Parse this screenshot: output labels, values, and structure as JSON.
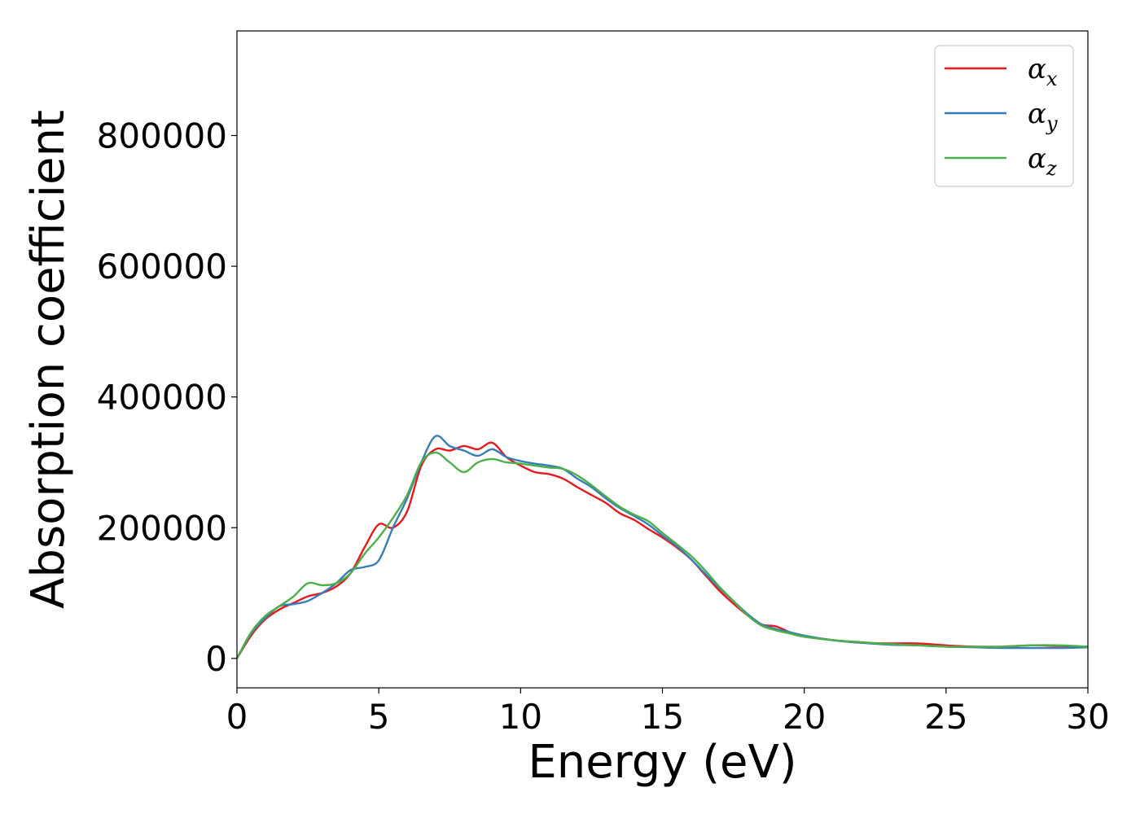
{
  "chart_data": {
    "type": "line",
    "title": "",
    "xlabel": "Energy (eV)",
    "ylabel": "Absorption coefficient",
    "xlim": [
      0,
      30
    ],
    "ylim": [
      -45000,
      960000
    ],
    "xticks": [
      0,
      5,
      10,
      15,
      20,
      25,
      30
    ],
    "yticks": [
      0,
      200000,
      400000,
      600000,
      800000
    ],
    "grid": false,
    "legend_position": "top-right",
    "series": [
      {
        "name": "α",
        "subscript": "x",
        "color": "#e41a1c",
        "x": [
          0,
          0.5,
          1,
          1.5,
          2,
          2.5,
          3,
          3.5,
          4,
          4.5,
          5,
          5.5,
          6,
          6.5,
          7,
          7.5,
          8,
          8.5,
          9,
          9.5,
          10,
          10.5,
          11,
          11.5,
          12,
          12.5,
          13,
          13.5,
          14,
          14.5,
          15,
          15.5,
          16,
          16.5,
          17,
          17.5,
          18,
          18.5,
          19,
          19.5,
          20,
          21,
          22,
          23,
          24,
          25,
          26,
          27,
          28,
          29,
          30
        ],
        "y": [
          0,
          35000,
          60000,
          75000,
          85000,
          95000,
          100000,
          110000,
          130000,
          170000,
          205000,
          200000,
          225000,
          295000,
          320000,
          318000,
          325000,
          320000,
          330000,
          308000,
          295000,
          285000,
          282000,
          275000,
          262000,
          250000,
          238000,
          222000,
          212000,
          198000,
          185000,
          170000,
          152000,
          128000,
          104000,
          84000,
          66000,
          52000,
          49000,
          40000,
          34000,
          28000,
          24000,
          23000,
          23000,
          20000,
          18000,
          18000,
          20000,
          19000,
          18000
        ]
      },
      {
        "name": "α",
        "subscript": "y",
        "color": "#377eb8",
        "x": [
          0,
          0.5,
          1,
          1.5,
          2,
          2.5,
          3,
          3.5,
          4,
          4.5,
          5,
          5.5,
          6,
          6.5,
          7,
          7.5,
          8,
          8.5,
          9,
          9.5,
          10,
          10.5,
          11,
          11.5,
          12,
          12.5,
          13,
          13.5,
          14,
          14.5,
          15,
          15.5,
          16,
          16.5,
          17,
          17.5,
          18,
          18.5,
          19,
          19.5,
          20,
          21,
          22,
          23,
          24,
          25,
          26,
          27,
          28,
          29,
          30
        ],
        "y": [
          0,
          38000,
          62000,
          80000,
          83000,
          88000,
          100000,
          115000,
          135000,
          140000,
          150000,
          200000,
          245000,
          300000,
          340000,
          325000,
          318000,
          310000,
          320000,
          308000,
          302000,
          298000,
          295000,
          290000,
          275000,
          262000,
          245000,
          230000,
          218000,
          205000,
          188000,
          172000,
          152000,
          130000,
          108000,
          88000,
          68000,
          52000,
          45000,
          40000,
          35000,
          28000,
          24000,
          21000,
          20000,
          18000,
          17000,
          16000,
          16000,
          16000,
          17000
        ]
      },
      {
        "name": "α",
        "subscript": "z",
        "color": "#4daf4a",
        "x": [
          0,
          0.5,
          1,
          1.5,
          2,
          2.5,
          3,
          3.5,
          4,
          4.5,
          5,
          5.5,
          6,
          6.5,
          7,
          7.5,
          8,
          8.5,
          9,
          9.5,
          10,
          10.5,
          11,
          11.5,
          12,
          12.5,
          13,
          13.5,
          14,
          14.5,
          15,
          15.5,
          16,
          16.5,
          17,
          17.5,
          18,
          18.5,
          19,
          19.5,
          20,
          21,
          22,
          23,
          24,
          25,
          26,
          27,
          28,
          29,
          30
        ],
        "y": [
          0,
          40000,
          65000,
          80000,
          95000,
          115000,
          112000,
          115000,
          130000,
          160000,
          185000,
          215000,
          250000,
          300000,
          315000,
          300000,
          285000,
          300000,
          305000,
          300000,
          298000,
          295000,
          292000,
          290000,
          280000,
          265000,
          248000,
          232000,
          220000,
          210000,
          192000,
          175000,
          157000,
          135000,
          110000,
          88000,
          66000,
          50000,
          43000,
          38000,
          33000,
          28000,
          25000,
          22000,
          20000,
          18000,
          18000,
          18000,
          20000,
          20000,
          18000
        ]
      }
    ]
  }
}
